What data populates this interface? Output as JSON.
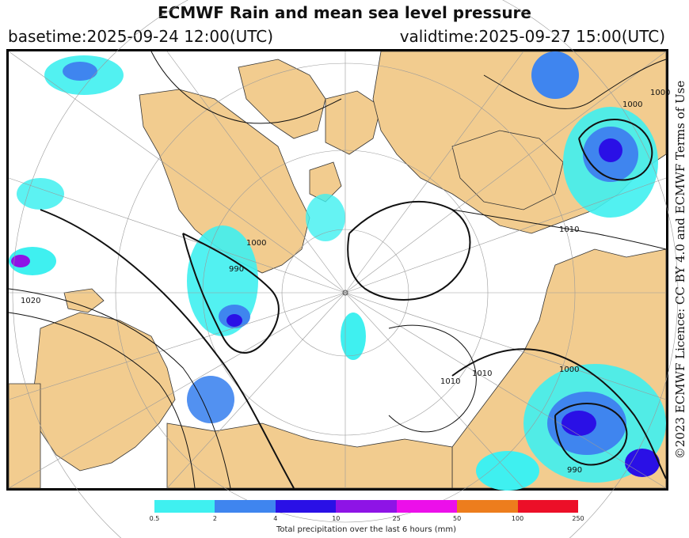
{
  "header": {
    "title": "ECMWF Rain and mean sea level pressure",
    "basetime": "basetime:2025-09-24 12:00(UTC)",
    "validtime": "validtime:2025-09-27 15:00(UTC)"
  },
  "licence": "©2023 ECMWF Licence: CC BY 4.0 and ECMWF Terms of Use",
  "map": {
    "projection": "polar-stereographic",
    "colors": {
      "land": "#f2cc8f",
      "sea": "#ffffff",
      "isobar": "#111111",
      "graticule": "#9a9a9a"
    },
    "isobar_labels": [
      "1000",
      "990",
      "1010",
      "1020",
      "1000",
      "1010",
      "1000",
      "990",
      "1010",
      "1000"
    ]
  },
  "legend": {
    "colors": [
      "#3ff0f0",
      "#3f85ef",
      "#2a10e6",
      "#8e14e6",
      "#ec0fea",
      "#ed7d1d",
      "#ec0f28"
    ],
    "ticks": [
      "0.5",
      "2",
      "4",
      "10",
      "25",
      "50",
      "100",
      "250"
    ],
    "caption": "Total precipitation over the last 6 hours (mm)"
  }
}
